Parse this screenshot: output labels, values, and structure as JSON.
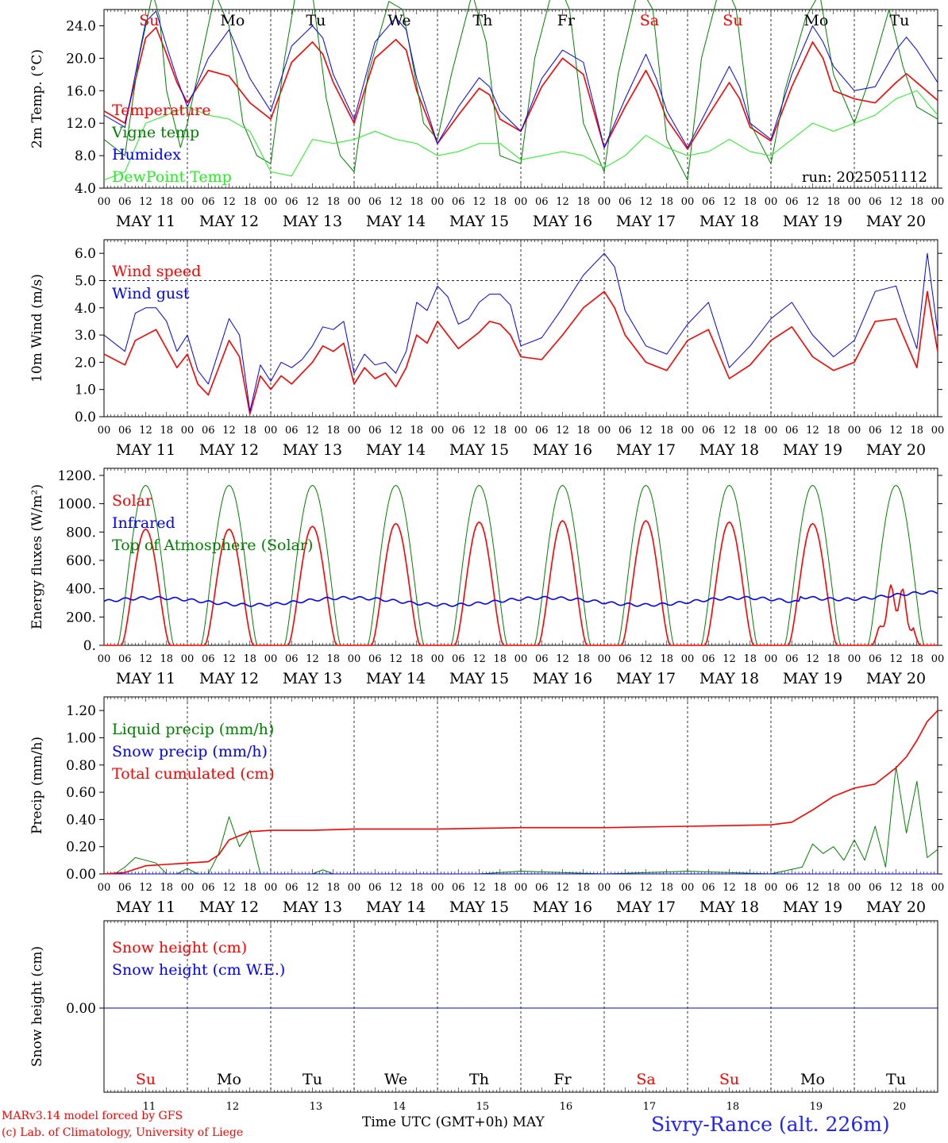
{
  "run_label": "run: 2025051112",
  "footer": {
    "model": "MARv3.14 model forced by GFS",
    "lab": "(c) Lab. of Climatology, University of Liege",
    "axis_title": "Time UTC (GMT+0h)",
    "month": "MAY",
    "location": "Sivry-Rance (alt. 226m)"
  },
  "days": {
    "short": [
      "Su",
      "Mo",
      "Tu",
      "We",
      "Th",
      "Fr",
      "Sa",
      "Su",
      "Mo",
      "Tu"
    ],
    "weekend": [
      true,
      false,
      false,
      false,
      false,
      false,
      true,
      true,
      false,
      false
    ],
    "date_labels": [
      "MAY 11",
      "MAY 12",
      "MAY 13",
      "MAY 14",
      "MAY 15",
      "MAY 16",
      "MAY 17",
      "MAY 18",
      "MAY 19",
      "MAY 20"
    ],
    "day_numbers": [
      "11",
      "12",
      "13",
      "14",
      "15",
      "16",
      "17",
      "18",
      "19",
      "20"
    ],
    "hour_ticks": [
      "00",
      "06",
      "12",
      "18"
    ],
    "final_tick": "00"
  },
  "colors": {
    "red": "#ff0000",
    "green": "#008000",
    "blue": "#0000ff",
    "light_green": "#22ee22",
    "weekend": "#ff0000",
    "weekday": "#000000",
    "location": "#2222ff"
  },
  "chart_data": [
    {
      "type": "line",
      "id": "temperature",
      "ylabel": "2m Temp. (°C)",
      "ylim": [
        4,
        26
      ],
      "yticks": [
        "4.0",
        "8.0",
        "12.0",
        "16.0",
        "20.0",
        "24.0"
      ],
      "ytick_values": [
        4,
        8,
        12,
        16,
        20,
        24
      ],
      "x_unit": "hours since May 11 00 UTC",
      "series": [
        {
          "name": "Temperature",
          "color": "red",
          "x": [
            0,
            6,
            12,
            15,
            18,
            21,
            24,
            30,
            36,
            42,
            48,
            54,
            60,
            63,
            66,
            72,
            78,
            84,
            87,
            90,
            96,
            102,
            108,
            111,
            114,
            120,
            126,
            132,
            138,
            144,
            150,
            156,
            159,
            162,
            168,
            174,
            180,
            183,
            186,
            192,
            198,
            204,
            207,
            210,
            216,
            222,
            228,
            231,
            234,
            240
          ],
          "values": [
            13.5,
            12,
            22.5,
            23.8,
            20.5,
            17,
            14.5,
            18.5,
            17.8,
            14.5,
            12.5,
            19.5,
            22,
            20.5,
            17,
            12,
            20,
            22.3,
            21,
            16,
            9.5,
            13,
            16.3,
            15.5,
            12.5,
            11,
            16.5,
            20,
            18,
            9,
            14,
            18.5,
            16,
            12.5,
            8.8,
            13,
            17,
            15,
            11.5,
            9.8,
            16.5,
            22,
            20,
            16,
            15,
            14.5,
            17,
            18.1,
            17,
            14.8
          ]
        },
        {
          "name": "Vigne temp",
          "color": "green",
          "x": [
            0,
            6,
            10,
            14,
            16,
            18,
            22,
            24,
            28,
            32,
            36,
            40,
            44,
            48,
            52,
            56,
            60,
            64,
            68,
            72,
            76,
            82,
            86,
            92,
            96,
            100,
            106,
            110,
            114,
            120,
            124,
            130,
            134,
            138,
            144,
            148,
            154,
            158,
            162,
            168,
            172,
            178,
            182,
            186,
            192,
            196,
            202,
            206,
            210,
            216,
            220,
            226,
            230,
            234,
            240
          ],
          "values": [
            10,
            8,
            20,
            28,
            25,
            16,
            9,
            12,
            20,
            28,
            24,
            12,
            8,
            7,
            20,
            30,
            28,
            15,
            8,
            6,
            18,
            27,
            26,
            12,
            10,
            18,
            28,
            22,
            8,
            7,
            20,
            30,
            26,
            12,
            6,
            18,
            29,
            26,
            10,
            5,
            20,
            30,
            26,
            12,
            7,
            16,
            25,
            28,
            18,
            12,
            17,
            26,
            19,
            14,
            12.5
          ]
        },
        {
          "name": "Humidex",
          "color": "blue",
          "x": [
            0,
            6,
            12,
            15,
            18,
            21,
            24,
            30,
            36,
            42,
            48,
            54,
            60,
            63,
            66,
            72,
            78,
            84,
            87,
            90,
            96,
            102,
            108,
            111,
            114,
            120,
            126,
            132,
            138,
            144,
            150,
            156,
            159,
            162,
            168,
            174,
            180,
            183,
            186,
            192,
            198,
            204,
            207,
            210,
            216,
            222,
            228,
            231,
            234,
            240
          ],
          "values": [
            13,
            11.5,
            24.5,
            25.8,
            21.5,
            17.5,
            14,
            20,
            23.5,
            17.5,
            13.5,
            21.5,
            24,
            22.5,
            18,
            12.5,
            22,
            25,
            23.5,
            17.5,
            9.5,
            14,
            17.6,
            16.5,
            13.5,
            11,
            17.5,
            21,
            19.5,
            9,
            15,
            20.5,
            17.5,
            13.5,
            9,
            14,
            19,
            16.5,
            12,
            10,
            18,
            24,
            22,
            19,
            16,
            16.5,
            21,
            22.6,
            21,
            17
          ]
        },
        {
          "name": "DewPoint Temp",
          "color": "light_green",
          "x": [
            0,
            6,
            12,
            18,
            24,
            30,
            36,
            42,
            48,
            54,
            60,
            66,
            72,
            78,
            84,
            90,
            96,
            102,
            108,
            114,
            120,
            126,
            132,
            138,
            144,
            150,
            156,
            162,
            168,
            174,
            180,
            186,
            192,
            198,
            204,
            210,
            216,
            222,
            228,
            234,
            240
          ],
          "values": [
            5,
            6,
            12,
            13,
            14,
            13,
            12.5,
            11,
            6,
            5.5,
            10,
            9.5,
            10,
            11,
            10,
            9.5,
            8,
            8.5,
            9.5,
            9.5,
            7.5,
            8,
            8.5,
            8,
            6.5,
            8,
            10.5,
            9,
            8,
            8.5,
            10,
            8.5,
            8,
            10,
            12,
            11,
            12,
            13,
            15,
            16,
            13
          ]
        }
      ]
    },
    {
      "type": "line",
      "id": "wind",
      "ylabel": "10m Wind (m/s)",
      "ylim": [
        0,
        6.5
      ],
      "yticks": [
        "0.0",
        "1.0",
        "2.0",
        "3.0",
        "4.0",
        "5.0",
        "6.0"
      ],
      "ytick_values": [
        0,
        1,
        2,
        3,
        4,
        5,
        6
      ],
      "reference_line": 5.0,
      "series": [
        {
          "name": "Wind speed",
          "color": "red",
          "x": [
            0,
            6,
            9,
            12,
            15,
            18,
            21,
            24,
            27,
            30,
            36,
            39,
            42,
            45,
            48,
            51,
            54,
            57,
            60,
            63,
            66,
            69,
            72,
            75,
            78,
            81,
            84,
            87,
            90,
            93,
            96,
            99,
            102,
            105,
            108,
            111,
            114,
            117,
            120,
            126,
            132,
            138,
            144,
            147,
            150,
            156,
            162,
            168,
            174,
            180,
            186,
            192,
            198,
            204,
            210,
            216,
            222,
            228,
            231,
            234,
            237,
            240
          ],
          "values": [
            2.3,
            1.9,
            2.8,
            3,
            3.2,
            2.5,
            1.8,
            2.3,
            1.2,
            0.8,
            2.8,
            2.2,
            0.1,
            1.5,
            1,
            1.5,
            1.2,
            1.6,
            2,
            2.6,
            2.4,
            2.7,
            1.2,
            1.8,
            1.4,
            1.6,
            1.1,
            1.8,
            3,
            2.7,
            3.5,
            3,
            2.5,
            2.8,
            3.1,
            3.5,
            3.4,
            3.0,
            2.2,
            2.1,
            3,
            4,
            4.6,
            4,
            3,
            2,
            1.7,
            2.8,
            3.2,
            1.4,
            1.9,
            2.8,
            3.3,
            2.2,
            1.7,
            2.0,
            3.5,
            3.6,
            2.7,
            1.8,
            4.6,
            2.4
          ]
        },
        {
          "name": "Wind gust",
          "color": "blue",
          "x": [
            0,
            6,
            9,
            12,
            15,
            18,
            21,
            24,
            27,
            30,
            36,
            39,
            42,
            45,
            48,
            51,
            54,
            57,
            60,
            63,
            66,
            69,
            72,
            75,
            78,
            81,
            84,
            87,
            90,
            93,
            96,
            99,
            102,
            105,
            108,
            111,
            114,
            117,
            120,
            126,
            132,
            138,
            144,
            147,
            150,
            156,
            162,
            168,
            174,
            180,
            186,
            192,
            198,
            204,
            210,
            216,
            222,
            228,
            231,
            234,
            237,
            240
          ],
          "values": [
            3,
            2.4,
            3.8,
            4,
            4,
            3.5,
            2.4,
            3,
            1.7,
            1.2,
            3.6,
            3,
            0.2,
            1.9,
            1.3,
            2,
            1.8,
            2.1,
            2.6,
            3.3,
            3.2,
            3.5,
            1.6,
            2.3,
            1.9,
            2,
            1.6,
            2.4,
            4.2,
            3.9,
            4.8,
            4.4,
            3.4,
            3.6,
            4.2,
            4.5,
            4.5,
            4.1,
            2.6,
            2.9,
            4,
            5.2,
            6.0,
            5.5,
            3.9,
            2.6,
            2.3,
            3.4,
            4.2,
            1.8,
            2.6,
            3.6,
            4.2,
            3.0,
            2.2,
            2.8,
            4.6,
            4.8,
            3.6,
            2.5,
            6.0,
            3.1
          ]
        }
      ]
    },
    {
      "type": "line",
      "id": "energy",
      "ylabel": "Energy fluxes (W/m²)",
      "ylim": [
        0,
        1250
      ],
      "yticks": [
        "0.",
        "200.",
        "400.",
        "600.",
        "800.",
        "1000.",
        "1200."
      ],
      "ytick_values": [
        0,
        200,
        400,
        600,
        800,
        1000,
        1200
      ],
      "solar_peaks": [
        820,
        820,
        840,
        860,
        870,
        880,
        880,
        870,
        860,
        470
      ],
      "toa_peak": 1130,
      "infrared_base": 310,
      "series": [
        {
          "name": "Solar",
          "color": "red"
        },
        {
          "name": "Infrared",
          "color": "blue"
        },
        {
          "name": "Top of Atmosphere (Solar)",
          "color": "green"
        }
      ]
    },
    {
      "type": "line",
      "id": "precip",
      "ylabel": "Precip (mm/h)",
      "ylim": [
        0,
        1.3
      ],
      "yticks": [
        "0.00",
        "0.20",
        "0.40",
        "0.60",
        "0.80",
        "1.00",
        "1.20"
      ],
      "ytick_values": [
        0,
        0.2,
        0.4,
        0.6,
        0.8,
        1.0,
        1.2
      ],
      "series": [
        {
          "name": "Liquid precip (mm/h)",
          "color": "green",
          "x": [
            0,
            3,
            6,
            9,
            12,
            15,
            18,
            21,
            24,
            27,
            30,
            33,
            36,
            39,
            42,
            45,
            48,
            60,
            63,
            66,
            72,
            108,
            120,
            144,
            168,
            192,
            201,
            204,
            207,
            210,
            213,
            216,
            219,
            222,
            225,
            228,
            231,
            234,
            237,
            240
          ],
          "values": [
            0,
            0,
            0.05,
            0.12,
            0.1,
            0.08,
            0,
            0,
            0.04,
            0,
            0,
            0.15,
            0.42,
            0.2,
            0.32,
            0,
            0,
            0,
            0.03,
            0,
            0,
            0,
            0.02,
            0,
            0.02,
            0,
            0.05,
            0.22,
            0.15,
            0.2,
            0.1,
            0.25,
            0.1,
            0.35,
            0.05,
            0.79,
            0.3,
            0.68,
            0.12,
            0.18
          ]
        },
        {
          "name": "Snow precip (mm/h)",
          "color": "blue",
          "x": [
            0,
            240
          ],
          "values": [
            0,
            0
          ]
        },
        {
          "name": "Total cumulated (cm)",
          "color": "red",
          "x": [
            0,
            6,
            12,
            18,
            24,
            30,
            33,
            36,
            42,
            48,
            60,
            72,
            96,
            120,
            144,
            168,
            192,
            198,
            204,
            210,
            216,
            222,
            228,
            231,
            234,
            237,
            240
          ],
          "values": [
            0,
            0.01,
            0.06,
            0.07,
            0.08,
            0.09,
            0.14,
            0.25,
            0.31,
            0.32,
            0.32,
            0.33,
            0.33,
            0.34,
            0.34,
            0.35,
            0.36,
            0.38,
            0.47,
            0.57,
            0.63,
            0.66,
            0.78,
            0.86,
            0.98,
            1.12,
            1.2
          ]
        }
      ]
    },
    {
      "type": "line",
      "id": "snow",
      "ylabel": "Snow height (cm)",
      "yticks": [
        "0.00"
      ],
      "series": [
        {
          "name": "Snow height (cm)",
          "color": "red",
          "x": [
            0,
            240
          ],
          "values": [
            0,
            0
          ]
        },
        {
          "name": "Snow height (cm W.E.)",
          "color": "blue",
          "x": [
            0,
            240
          ],
          "values": [
            0,
            0
          ]
        }
      ]
    }
  ]
}
